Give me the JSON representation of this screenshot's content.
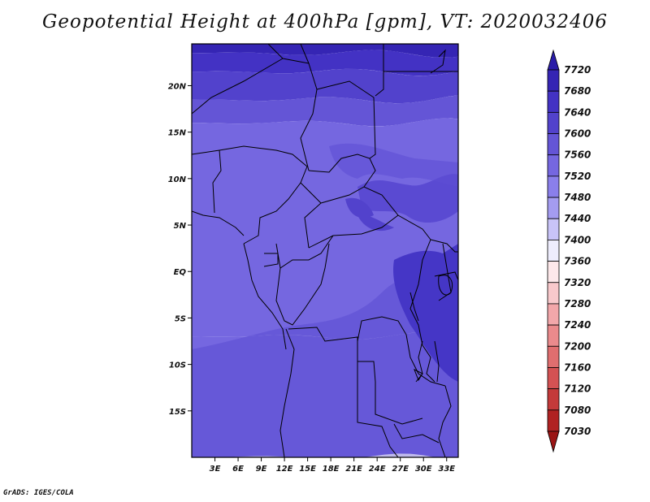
{
  "title": "Geopotential Height at 400hPa [gpm], VT: 2020032406",
  "footer": "GrADS: IGES/COLA",
  "chart_data": {
    "type": "filled-contour-map",
    "variable": "Geopotential Height",
    "level": "400hPa",
    "units": "gpm",
    "valid_time": "2020032406",
    "lon_range": [
      0,
      34.5
    ],
    "lat_range": [
      -20,
      24.5
    ],
    "x_ticks": [
      "3E",
      "6E",
      "9E",
      "12E",
      "15E",
      "18E",
      "21E",
      "24E",
      "27E",
      "30E",
      "33E"
    ],
    "x_tick_values": [
      3,
      6,
      9,
      12,
      15,
      18,
      21,
      24,
      27,
      30,
      33
    ],
    "y_ticks": [
      "20N",
      "15N",
      "10N",
      "5N",
      "EQ",
      "5S",
      "10S",
      "15S"
    ],
    "y_tick_values": [
      20,
      15,
      10,
      5,
      0,
      -5,
      -10,
      -15
    ],
    "colorbar": {
      "labels": [
        "7720",
        "7680",
        "7640",
        "7600",
        "7560",
        "7520",
        "7480",
        "7440",
        "7400",
        "7360",
        "7320",
        "7280",
        "7240",
        "7200",
        "7160",
        "7120",
        "7080",
        "7030"
      ],
      "colors": [
        "#2a1ca8",
        "#3525b4",
        "#4332c4",
        "#5242cc",
        "#6455d6",
        "#7567e0",
        "#8a7fea",
        "#a49cf0",
        "#c9c4f8",
        "#eeedfd",
        "#fde8ea",
        "#f8c9cc",
        "#f2a7aa",
        "#ea8a8c",
        "#e06e6f",
        "#d45253",
        "#c43a3a",
        "#b02222",
        "#9a1414"
      ]
    },
    "height_bands": [
      {
        "value": 7680,
        "lat_top": 25,
        "lat_bottom": 23.5
      },
      {
        "value": 7640,
        "lat_top": 23.5,
        "lat_bottom": 21.5
      },
      {
        "value": 7600,
        "lat_top": 21.5,
        "lat_bottom": 18.5
      },
      {
        "value": 7560,
        "lat_top": 18.5,
        "lat_bottom": 16
      },
      {
        "value": 7540,
        "lat_top": 16,
        "lat_bottom": -7
      },
      {
        "value": 7520,
        "lat_top": -7,
        "lat_bottom": -20
      }
    ]
  }
}
